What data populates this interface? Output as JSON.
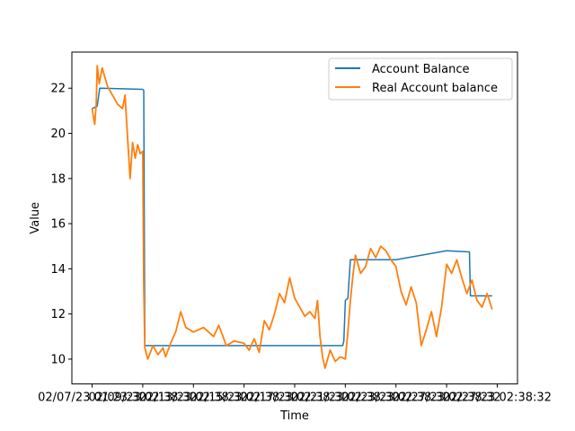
{
  "chart_data": {
    "type": "line",
    "xlabel": "Time",
    "ylabel": "Value",
    "xlim": [
      -0.4,
      8.4
    ],
    "ylim": [
      8.9,
      23.6
    ],
    "yticks": [
      10,
      12,
      14,
      16,
      18,
      20,
      22
    ],
    "x_ticks": [
      {
        "x": 0,
        "label": "02/07/23 01:23:32"
      },
      {
        "x": 1,
        "label": "02/09/23 02:38:32"
      },
      {
        "x": 2,
        "label": "02/13/23 02:38:32"
      },
      {
        "x": 3,
        "label": "02/15/23 02:38:32"
      },
      {
        "x": 4,
        "label": "02/17/23 02:38:32"
      },
      {
        "x": 5,
        "label": "02/21/23 02:38:32"
      },
      {
        "x": 6,
        "label": "02/23/23 02:38:32"
      },
      {
        "x": 7,
        "label": "02/27/23 02:38:32"
      },
      {
        "x": 8,
        "label": "02/27/23 02:38:32"
      }
    ],
    "legend": {
      "position": "top-right"
    },
    "series": [
      {
        "name": "Account Balance",
        "color": "#1f77b4",
        "points": [
          [
            0.0,
            21.1
          ],
          [
            0.1,
            21.2
          ],
          [
            0.15,
            22.0
          ],
          [
            1.0,
            21.95
          ],
          [
            1.02,
            21.9
          ],
          [
            1.04,
            10.6
          ],
          [
            3.0,
            10.6
          ],
          [
            4.0,
            10.6
          ],
          [
            4.95,
            10.6
          ],
          [
            4.97,
            10.8
          ],
          [
            5.0,
            12.6
          ],
          [
            5.05,
            12.7
          ],
          [
            5.1,
            14.4
          ],
          [
            6.0,
            14.4
          ],
          [
            7.0,
            14.8
          ],
          [
            7.45,
            14.75
          ],
          [
            7.47,
            12.8
          ],
          [
            7.9,
            12.8
          ]
        ]
      },
      {
        "name": "Real Account balance",
        "color": "#ff7f0e",
        "points": [
          [
            0.0,
            21.1
          ],
          [
            0.05,
            20.4
          ],
          [
            0.08,
            21.3
          ],
          [
            0.1,
            23.0
          ],
          [
            0.14,
            22.2
          ],
          [
            0.2,
            22.9
          ],
          [
            0.3,
            22.1
          ],
          [
            0.4,
            21.7
          ],
          [
            0.5,
            21.3
          ],
          [
            0.6,
            21.1
          ],
          [
            0.65,
            21.7
          ],
          [
            0.7,
            19.8
          ],
          [
            0.75,
            18.0
          ],
          [
            0.8,
            19.6
          ],
          [
            0.85,
            18.9
          ],
          [
            0.9,
            19.5
          ],
          [
            0.95,
            19.1
          ],
          [
            1.0,
            19.2
          ],
          [
            1.02,
            13.3
          ],
          [
            1.04,
            10.5
          ],
          [
            1.1,
            10.0
          ],
          [
            1.2,
            10.6
          ],
          [
            1.3,
            10.2
          ],
          [
            1.4,
            10.5
          ],
          [
            1.45,
            10.1
          ],
          [
            1.55,
            10.7
          ],
          [
            1.65,
            11.2
          ],
          [
            1.75,
            12.1
          ],
          [
            1.85,
            11.4
          ],
          [
            2.0,
            11.2
          ],
          [
            2.2,
            11.4
          ],
          [
            2.4,
            11.0
          ],
          [
            2.5,
            11.5
          ],
          [
            2.65,
            10.6
          ],
          [
            2.8,
            10.8
          ],
          [
            3.0,
            10.7
          ],
          [
            3.1,
            10.4
          ],
          [
            3.2,
            10.9
          ],
          [
            3.3,
            10.3
          ],
          [
            3.4,
            11.7
          ],
          [
            3.5,
            11.3
          ],
          [
            3.6,
            12.0
          ],
          [
            3.7,
            12.9
          ],
          [
            3.8,
            12.5
          ],
          [
            3.9,
            13.6
          ],
          [
            4.0,
            12.7
          ],
          [
            4.1,
            12.3
          ],
          [
            4.2,
            11.9
          ],
          [
            4.3,
            12.1
          ],
          [
            4.4,
            11.8
          ],
          [
            4.45,
            12.6
          ],
          [
            4.5,
            11.0
          ],
          [
            4.55,
            10.1
          ],
          [
            4.6,
            9.6
          ],
          [
            4.7,
            10.4
          ],
          [
            4.8,
            9.9
          ],
          [
            4.9,
            10.1
          ],
          [
            5.0,
            10.0
          ],
          [
            5.05,
            11.2
          ],
          [
            5.1,
            12.6
          ],
          [
            5.15,
            13.7
          ],
          [
            5.2,
            14.6
          ],
          [
            5.3,
            13.8
          ],
          [
            5.4,
            14.1
          ],
          [
            5.5,
            14.9
          ],
          [
            5.6,
            14.5
          ],
          [
            5.7,
            15.0
          ],
          [
            5.8,
            14.8
          ],
          [
            5.9,
            14.4
          ],
          [
            6.0,
            14.1
          ],
          [
            6.1,
            13.0
          ],
          [
            6.2,
            12.4
          ],
          [
            6.3,
            13.2
          ],
          [
            6.4,
            12.5
          ],
          [
            6.5,
            10.6
          ],
          [
            6.6,
            11.3
          ],
          [
            6.7,
            12.1
          ],
          [
            6.8,
            11.0
          ],
          [
            6.9,
            12.3
          ],
          [
            7.0,
            14.2
          ],
          [
            7.1,
            13.8
          ],
          [
            7.2,
            14.4
          ],
          [
            7.3,
            13.6
          ],
          [
            7.4,
            12.9
          ],
          [
            7.5,
            13.5
          ],
          [
            7.6,
            12.6
          ],
          [
            7.7,
            12.3
          ],
          [
            7.8,
            12.9
          ],
          [
            7.9,
            12.2
          ]
        ]
      }
    ]
  }
}
